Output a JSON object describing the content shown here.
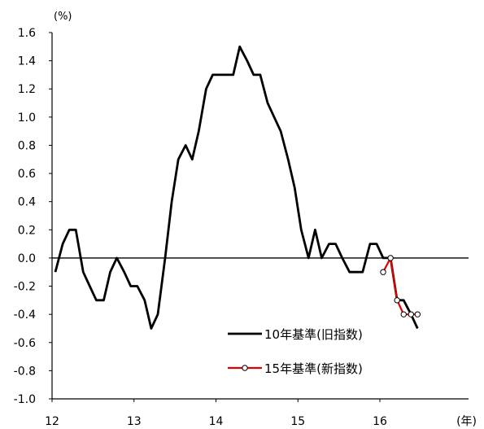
{
  "chart_data": {
    "type": "line",
    "ylabel": "(%)",
    "xlabel": "(年)",
    "ylim": [
      -1.0,
      1.6
    ],
    "xlim": [
      12,
      16.5
    ],
    "yticks": [
      "1.6",
      "1.4",
      "1.2",
      "1.0",
      "0.8",
      "0.6",
      "0.4",
      "0.2",
      "0.0",
      "-0.2",
      "-0.4",
      "-0.6",
      "-0.8",
      "-1.0"
    ],
    "xticks": [
      "12",
      "13",
      "14",
      "15",
      "16"
    ],
    "legend_position": "bottom-right",
    "series": [
      {
        "name": "10年基準(旧指数)",
        "color": "#000000",
        "marker": "none",
        "points": [
          [
            12.04,
            -0.1
          ],
          [
            12.13,
            0.1
          ],
          [
            12.21,
            0.2
          ],
          [
            12.29,
            0.2
          ],
          [
            12.38,
            -0.1
          ],
          [
            12.46,
            -0.2
          ],
          [
            12.54,
            -0.3
          ],
          [
            12.63,
            -0.3
          ],
          [
            12.71,
            -0.1
          ],
          [
            12.79,
            0.0
          ],
          [
            12.88,
            -0.1
          ],
          [
            12.96,
            -0.2
          ],
          [
            13.04,
            -0.2
          ],
          [
            13.13,
            -0.3
          ],
          [
            13.21,
            -0.5
          ],
          [
            13.29,
            -0.4
          ],
          [
            13.38,
            0.0
          ],
          [
            13.46,
            0.4
          ],
          [
            13.54,
            0.7
          ],
          [
            13.63,
            0.8
          ],
          [
            13.71,
            0.7
          ],
          [
            13.79,
            0.9
          ],
          [
            13.88,
            1.2
          ],
          [
            13.96,
            1.3
          ],
          [
            14.04,
            1.3
          ],
          [
            14.13,
            1.3
          ],
          [
            14.21,
            1.3
          ],
          [
            14.29,
            1.5
          ],
          [
            14.38,
            1.4
          ],
          [
            14.46,
            1.3
          ],
          [
            14.54,
            1.3
          ],
          [
            14.63,
            1.1
          ],
          [
            14.71,
            1.0
          ],
          [
            14.79,
            0.9
          ],
          [
            14.88,
            0.7
          ],
          [
            14.96,
            0.5
          ],
          [
            15.04,
            0.2
          ],
          [
            15.13,
            0.0
          ],
          [
            15.21,
            0.2
          ],
          [
            15.29,
            0.0
          ],
          [
            15.38,
            0.1
          ],
          [
            15.46,
            0.1
          ],
          [
            15.54,
            0.0
          ],
          [
            15.63,
            -0.1
          ],
          [
            15.71,
            -0.1
          ],
          [
            15.79,
            -0.1
          ],
          [
            15.88,
            0.1
          ],
          [
            15.96,
            0.1
          ],
          [
            16.04,
            0.0
          ],
          [
            16.13,
            0.0
          ],
          [
            16.21,
            -0.3
          ],
          [
            16.29,
            -0.3
          ],
          [
            16.38,
            -0.4
          ],
          [
            16.46,
            -0.5
          ]
        ]
      },
      {
        "name": "15年基準(新指数)",
        "color": "#e00000",
        "marker": "open-circle",
        "points": [
          [
            16.04,
            -0.1
          ],
          [
            16.13,
            0.0
          ],
          [
            16.21,
            -0.3
          ],
          [
            16.29,
            -0.4
          ],
          [
            16.38,
            -0.4
          ],
          [
            16.46,
            -0.4
          ]
        ]
      }
    ]
  }
}
